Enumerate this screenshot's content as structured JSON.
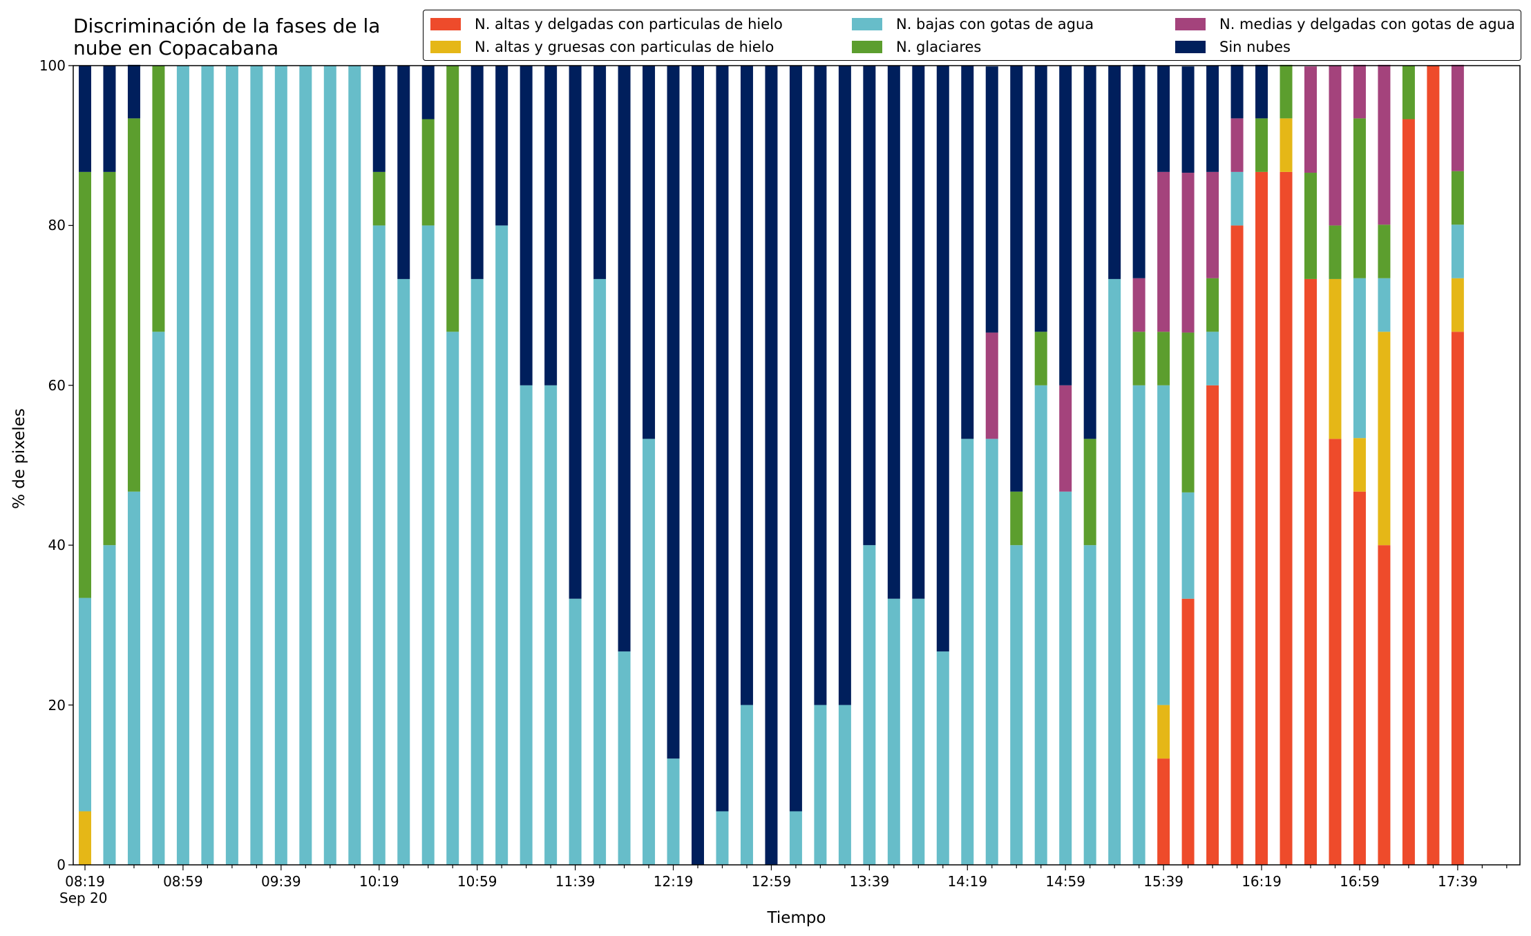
{
  "chart_data": {
    "type": "bar",
    "stacked": true,
    "title": "Discriminación de la fases de la\nnube en Copacabana",
    "xlabel": "Tiempo",
    "ylabel": "% de pixeles",
    "ylim": [
      0,
      100
    ],
    "yticks": [
      "0",
      "20",
      "40",
      "60",
      "80",
      "100"
    ],
    "xtick_labels": [
      "08:19",
      "08:59",
      "09:39",
      "10:19",
      "10:59",
      "11:39",
      "12:19",
      "12:59",
      "13:39",
      "14:19",
      "14:59",
      "15:39",
      "16:19",
      "16:59",
      "17:39"
    ],
    "date_label": "Sep 20",
    "grid": false,
    "legend_position": "top-right",
    "legend_entries": [
      "N. altas y delgadas con particulas de hielo",
      "N. altas y gruesas con particulas de hielo",
      "N. bajas con gotas de agua",
      "N. glaciares",
      "N. medias y delgadas con gotas de agua",
      "Sin nubes"
    ],
    "colors": [
      "#ee4b2b",
      "#e5b717",
      "#67bdc9",
      "#5c9e2e",
      "#a4437c",
      "#001f5c"
    ],
    "series": [
      {
        "name": "N. altas y delgadas con particulas de hielo",
        "values": [
          0,
          0,
          0,
          0,
          0,
          0,
          0,
          0,
          0,
          0,
          0,
          0,
          0,
          0,
          0,
          0,
          0,
          0,
          0,
          0,
          0,
          0,
          0,
          0,
          0,
          0,
          0,
          0,
          0,
          0,
          0,
          0,
          0,
          0,
          0,
          0,
          0,
          0,
          0,
          0,
          0,
          0,
          0,
          0,
          13.3,
          33.3,
          60,
          80,
          86.7,
          86.7,
          73.3,
          53.3,
          46.7,
          40,
          93.3,
          100,
          66.7
        ]
      },
      {
        "name": "N. altas y gruesas con particulas de hielo",
        "values": [
          6.7,
          0,
          0,
          0,
          0,
          0,
          0,
          0,
          0,
          0,
          0,
          0,
          0,
          0,
          0,
          0,
          0,
          0,
          0,
          0,
          0,
          0,
          0,
          0,
          0,
          0,
          0,
          0,
          0,
          0,
          0,
          0,
          0,
          0,
          0,
          0,
          0,
          0,
          0,
          0,
          0,
          0,
          0,
          0,
          6.7,
          0,
          0,
          0,
          0,
          6.7,
          0,
          20,
          6.7,
          26.7,
          0,
          0,
          6.7
        ]
      },
      {
        "name": "N. bajas con gotas de agua",
        "values": [
          26.7,
          40,
          46.7,
          66.7,
          100,
          100,
          100,
          100,
          100,
          100,
          100,
          100,
          80,
          73.3,
          80,
          66.7,
          73.3,
          80,
          60,
          60,
          33.3,
          73.3,
          26.7,
          53.3,
          13.3,
          0,
          6.7,
          20,
          0,
          6.7,
          20,
          20,
          40,
          33.3,
          33.3,
          26.7,
          53.3,
          53.3,
          40,
          60,
          46.7,
          40,
          73.3,
          60,
          40,
          13.3,
          6.7,
          6.7,
          0,
          0,
          0,
          0,
          20,
          6.7,
          0,
          0,
          6.7
        ]
      },
      {
        "name": "N. glaciares",
        "values": [
          53.3,
          46.7,
          46.7,
          33.3,
          0,
          0,
          0,
          0,
          0,
          0,
          0,
          0,
          6.7,
          0,
          13.3,
          33.3,
          0,
          0,
          0,
          0,
          0,
          0,
          0,
          0,
          0,
          0,
          0,
          0,
          0,
          0,
          0,
          0,
          0,
          0,
          0,
          0,
          0,
          0,
          6.7,
          6.7,
          0,
          13.3,
          0,
          6.7,
          6.7,
          20,
          6.7,
          0,
          6.7,
          6.7,
          13.3,
          6.7,
          20,
          6.7,
          6.7,
          0,
          6.7
        ]
      },
      {
        "name": "N. medias y delgadas con gotas de agua",
        "values": [
          0,
          0,
          0,
          0,
          0,
          0,
          0,
          0,
          0,
          0,
          0,
          0,
          0,
          0,
          0,
          0,
          0,
          0,
          0,
          0,
          0,
          0,
          0,
          0,
          0,
          0,
          0,
          0,
          0,
          0,
          0,
          0,
          0,
          0,
          0,
          0,
          0,
          13.3,
          0,
          0,
          13.3,
          0,
          0,
          6.7,
          20,
          20,
          13.3,
          6.7,
          0,
          0,
          13.3,
          20,
          6.7,
          20,
          0,
          0,
          13.3
        ]
      },
      {
        "name": "Sin nubes",
        "values": [
          13.3,
          13.3,
          6.7,
          0,
          0,
          0,
          0,
          0,
          0,
          0,
          0,
          0,
          13.3,
          26.7,
          6.7,
          0,
          26.7,
          20,
          40,
          40,
          66.7,
          26.7,
          73.3,
          46.7,
          86.7,
          100,
          93.3,
          80,
          100,
          93.3,
          80,
          80,
          60,
          66.7,
          66.7,
          73.3,
          46.7,
          33.3,
          53.3,
          33.3,
          40,
          46.7,
          26.7,
          26.7,
          13.3,
          13.3,
          13.3,
          6.7,
          6.7,
          0,
          0,
          0,
          0,
          0,
          0,
          0,
          0
        ]
      }
    ]
  }
}
